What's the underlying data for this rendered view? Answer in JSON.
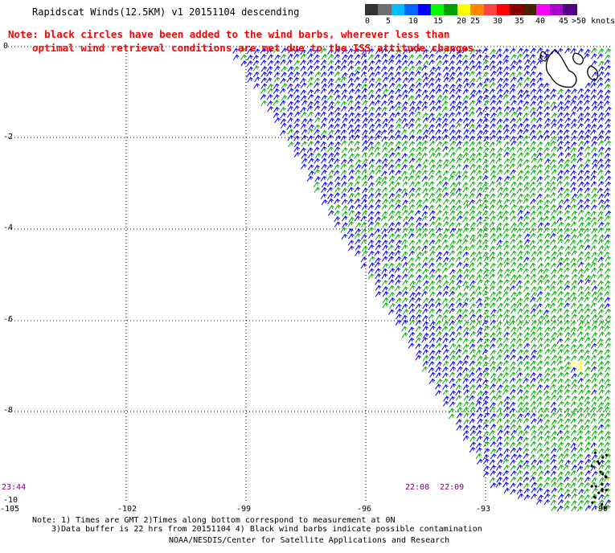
{
  "header": {
    "title": "Rapidscat Winds(12.5KM) v1 20151104 descending"
  },
  "note": {
    "line1": "Note: black circles have been added to the wind barbs, wherever less than",
    "line2": "optimal wind retrieval conditions are met due to the ISS attitude changes."
  },
  "legend": {
    "colors": [
      "#333333",
      "#6e6e6e",
      "#00bbff",
      "#0066ff",
      "#0000ff",
      "#00ff00",
      "#00a000",
      "#ffff00",
      "#ff8800",
      "#ff4444",
      "#ff0000",
      "#880000",
      "#442200",
      "#ff00ff",
      "#aa00cc",
      "#550088"
    ],
    "labels": [
      "0",
      "5",
      "10",
      "15",
      "20",
      "25",
      "30",
      "35",
      "40",
      "45",
      ">50 knots"
    ]
  },
  "map": {
    "lat_labels": [
      "0",
      "-2",
      "-4",
      "-6",
      "-8",
      "-10"
    ],
    "lon_labels": [
      "-105",
      "-102",
      "-99",
      "-96",
      "-93",
      "-90"
    ],
    "time_labels": [
      "23:44",
      "22:08",
      "22:09"
    ]
  },
  "footer": {
    "note_line1": "Note: 1) Times are GMT 2)Times along bottom correspond to measurement at 0N",
    "note_line2": "3)Data buffer is 22 hrs from 20151104 4) Black wind barbs indicate possible contamination",
    "credit": "NOAA/NESDIS/Center for Satellite Applications and Research"
  }
}
